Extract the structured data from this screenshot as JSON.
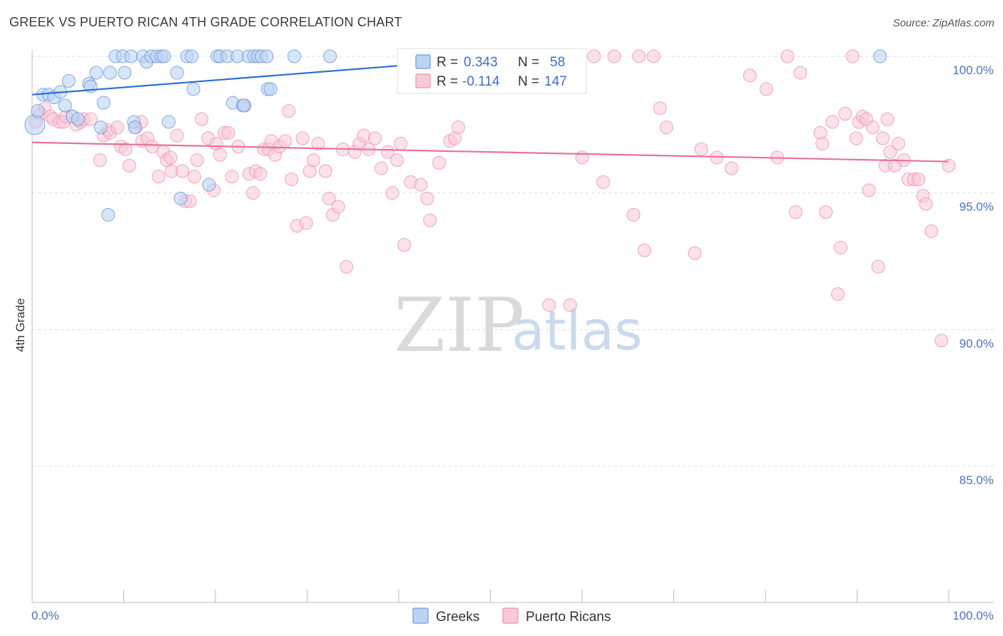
{
  "title": "GREEK VS PUERTO RICAN 4TH GRADE CORRELATION CHART",
  "source": "Source: ZipAtlas.com",
  "watermark": {
    "zip": "ZIP",
    "atlas": "atlas"
  },
  "colors": {
    "greeks": "#6a9be0",
    "greeks_fill": "#bcd3f3",
    "puerto_ricans": "#ef8fab",
    "puerto_ricans_fill": "#f8c9d7",
    "greeks_line": "#2a6fd1",
    "puerto_ricans_line": "#e8729a",
    "tick_label": "#4a72c4",
    "grid": "#dcdcdc"
  },
  "legend": {
    "greeks": {
      "r_label": "R =",
      "r_value": "0.343",
      "n_label": "N =",
      "n_value": "58"
    },
    "puerto_ricans": {
      "r_label": "R =",
      "r_value": "-0.114",
      "n_label": "N =",
      "n_value": "147"
    }
  },
  "bottom_legend": {
    "greeks": "Greeks",
    "puerto_ricans": "Puerto Ricans"
  },
  "chart_data": {
    "type": "scatter",
    "title": "GREEK VS PUERTO RICAN 4TH GRADE CORRELATION CHART",
    "xlabel": "",
    "ylabel": "4th Grade",
    "xlim": [
      0,
      100
    ],
    "ylim": [
      80.5,
      100.8
    ],
    "x_tick_labels": [
      "0.0%",
      "100.0%"
    ],
    "y_ticks": [
      85,
      90,
      95,
      100
    ],
    "y_tick_labels": [
      "85.0%",
      "90.0%",
      "95.0%",
      "100.0%"
    ],
    "grid": true,
    "legend_position": "top-center",
    "series": [
      {
        "name": "Greeks",
        "r": 0.343,
        "n": 58,
        "trend": {
          "x": [
            0,
            53
          ],
          "y": [
            98.6,
            100.0
          ]
        },
        "points": [
          [
            0.3,
            97.5
          ],
          [
            0.6,
            98.0
          ],
          [
            1.2,
            98.6
          ],
          [
            1.8,
            98.6
          ],
          [
            2.4,
            98.5
          ],
          [
            3.1,
            98.7
          ],
          [
            3.6,
            98.2
          ],
          [
            4.0,
            99.1
          ],
          [
            4.4,
            97.8
          ],
          [
            5.0,
            97.7
          ],
          [
            6.2,
            99.0
          ],
          [
            6.4,
            98.9
          ],
          [
            7.0,
            99.4
          ],
          [
            7.5,
            97.4
          ],
          [
            7.8,
            98.3
          ],
          [
            8.3,
            94.2
          ],
          [
            8.5,
            99.4
          ],
          [
            9.1,
            100.0
          ],
          [
            9.9,
            100.0
          ],
          [
            10.1,
            99.4
          ],
          [
            10.8,
            100.0
          ],
          [
            11.1,
            97.6
          ],
          [
            11.2,
            97.4
          ],
          [
            12.1,
            100.0
          ],
          [
            12.5,
            99.8
          ],
          [
            13.0,
            100.0
          ],
          [
            13.6,
            100.0
          ],
          [
            14.1,
            100.0
          ],
          [
            14.4,
            100.0
          ],
          [
            14.9,
            97.6
          ],
          [
            15.8,
            99.4
          ],
          [
            16.2,
            94.8
          ],
          [
            16.9,
            100.0
          ],
          [
            17.4,
            100.0
          ],
          [
            17.6,
            98.8
          ],
          [
            19.3,
            95.3
          ],
          [
            20.2,
            100.0
          ],
          [
            20.5,
            100.0
          ],
          [
            21.3,
            100.0
          ],
          [
            21.9,
            98.3
          ],
          [
            22.4,
            100.0
          ],
          [
            23.0,
            98.2
          ],
          [
            23.1,
            98.2
          ],
          [
            23.6,
            100.0
          ],
          [
            24.2,
            100.0
          ],
          [
            24.6,
            100.0
          ],
          [
            25.0,
            100.0
          ],
          [
            25.6,
            100.0
          ],
          [
            25.7,
            98.8
          ],
          [
            26.0,
            98.8
          ],
          [
            28.6,
            100.0
          ],
          [
            32.5,
            100.0
          ],
          [
            40.7,
            100.0
          ],
          [
            42.1,
            100.0
          ],
          [
            44.4,
            100.0
          ],
          [
            46.0,
            100.0
          ],
          [
            56.8,
            100.0
          ],
          [
            92.5,
            100.0
          ]
        ]
      },
      {
        "name": "Puerto Ricans",
        "r": -0.114,
        "n": 147,
        "trend": {
          "x": [
            0,
            100
          ],
          "y": [
            96.85,
            96.15
          ]
        },
        "points": [
          [
            0.4,
            97.6
          ],
          [
            0.9,
            97.9
          ],
          [
            1.4,
            98.1
          ],
          [
            2.0,
            97.8
          ],
          [
            2.3,
            97.7
          ],
          [
            3.0,
            97.6
          ],
          [
            3.4,
            97.6
          ],
          [
            3.7,
            97.8
          ],
          [
            4.4,
            97.8
          ],
          [
            4.8,
            97.5
          ],
          [
            5.3,
            97.6
          ],
          [
            5.6,
            97.7
          ],
          [
            6.4,
            97.7
          ],
          [
            7.4,
            96.2
          ],
          [
            7.8,
            97.1
          ],
          [
            8.3,
            97.3
          ],
          [
            8.5,
            97.2
          ],
          [
            9.3,
            97.4
          ],
          [
            9.7,
            96.7
          ],
          [
            10.2,
            96.6
          ],
          [
            10.6,
            96.0
          ],
          [
            11.3,
            97.4
          ],
          [
            11.9,
            97.6
          ],
          [
            12.0,
            96.9
          ],
          [
            12.6,
            97.0
          ],
          [
            13.1,
            96.7
          ],
          [
            13.8,
            95.6
          ],
          [
            14.3,
            96.5
          ],
          [
            14.7,
            96.2
          ],
          [
            15.1,
            96.3
          ],
          [
            15.2,
            95.8
          ],
          [
            15.8,
            97.1
          ],
          [
            16.4,
            95.8
          ],
          [
            16.7,
            94.7
          ],
          [
            17.2,
            94.7
          ],
          [
            17.7,
            95.6
          ],
          [
            18.0,
            96.2
          ],
          [
            18.5,
            97.7
          ],
          [
            19.2,
            97.0
          ],
          [
            19.8,
            95.1
          ],
          [
            20.1,
            96.8
          ],
          [
            20.5,
            96.4
          ],
          [
            21.0,
            97.2
          ],
          [
            21.4,
            97.2
          ],
          [
            21.8,
            95.6
          ],
          [
            22.5,
            96.7
          ],
          [
            23.2,
            98.2
          ],
          [
            23.7,
            95.7
          ],
          [
            24.1,
            95.0
          ],
          [
            24.4,
            95.8
          ],
          [
            24.9,
            95.7
          ],
          [
            25.3,
            96.6
          ],
          [
            25.8,
            96.6
          ],
          [
            26.1,
            96.9
          ],
          [
            26.5,
            96.4
          ],
          [
            27.0,
            96.7
          ],
          [
            27.6,
            96.9
          ],
          [
            28.0,
            98.0
          ],
          [
            28.3,
            95.5
          ],
          [
            28.9,
            93.8
          ],
          [
            29.5,
            97.0
          ],
          [
            29.9,
            93.9
          ],
          [
            30.3,
            95.8
          ],
          [
            30.7,
            96.2
          ],
          [
            31.2,
            96.8
          ],
          [
            32.0,
            95.8
          ],
          [
            32.4,
            94.8
          ],
          [
            32.8,
            94.2
          ],
          [
            33.4,
            94.5
          ],
          [
            33.9,
            96.6
          ],
          [
            34.3,
            92.3
          ],
          [
            35.2,
            96.5
          ],
          [
            35.7,
            96.8
          ],
          [
            36.2,
            97.1
          ],
          [
            36.7,
            96.6
          ],
          [
            37.4,
            97.0
          ],
          [
            38.1,
            95.9
          ],
          [
            38.8,
            96.5
          ],
          [
            39.3,
            95.0
          ],
          [
            39.8,
            96.2
          ],
          [
            40.2,
            96.8
          ],
          [
            40.6,
            93.1
          ],
          [
            41.3,
            95.4
          ],
          [
            42.4,
            95.3
          ],
          [
            43.1,
            94.8
          ],
          [
            43.4,
            94.0
          ],
          [
            44.4,
            96.1
          ],
          [
            45.6,
            96.9
          ],
          [
            46.1,
            97.0
          ],
          [
            46.5,
            97.4
          ],
          [
            47.4,
            100.0
          ],
          [
            48.6,
            99.4
          ],
          [
            49.7,
            100.0
          ],
          [
            50.6,
            100.0
          ],
          [
            56.4,
            90.9
          ],
          [
            58.7,
            90.9
          ],
          [
            59.0,
            100.0
          ],
          [
            60.0,
            96.3
          ],
          [
            61.3,
            100.0
          ],
          [
            62.3,
            95.4
          ],
          [
            63.5,
            100.0
          ],
          [
            65.6,
            94.2
          ],
          [
            66.2,
            100.0
          ],
          [
            66.8,
            92.9
          ],
          [
            67.8,
            100.0
          ],
          [
            68.5,
            98.1
          ],
          [
            69.2,
            97.4
          ],
          [
            72.3,
            92.8
          ],
          [
            73.0,
            96.6
          ],
          [
            74.7,
            96.3
          ],
          [
            76.3,
            95.9
          ],
          [
            78.3,
            99.3
          ],
          [
            80.1,
            98.8
          ],
          [
            81.3,
            96.3
          ],
          [
            82.4,
            100.0
          ],
          [
            83.3,
            94.3
          ],
          [
            83.8,
            99.4
          ],
          [
            86.0,
            97.2
          ],
          [
            86.2,
            96.8
          ],
          [
            86.6,
            94.3
          ],
          [
            87.3,
            97.6
          ],
          [
            87.9,
            91.3
          ],
          [
            88.2,
            93.0
          ],
          [
            88.7,
            97.9
          ],
          [
            89.5,
            100.0
          ],
          [
            89.9,
            97.0
          ],
          [
            90.2,
            97.6
          ],
          [
            90.6,
            97.8
          ],
          [
            91.0,
            97.7
          ],
          [
            91.3,
            95.1
          ],
          [
            91.7,
            97.4
          ],
          [
            92.3,
            92.3
          ],
          [
            92.8,
            97.0
          ],
          [
            93.1,
            96.0
          ],
          [
            93.3,
            97.7
          ],
          [
            93.6,
            96.5
          ],
          [
            94.1,
            96.0
          ],
          [
            94.5,
            96.8
          ],
          [
            95.1,
            96.2
          ],
          [
            95.6,
            95.5
          ],
          [
            96.2,
            95.5
          ],
          [
            96.7,
            95.5
          ],
          [
            97.2,
            94.9
          ],
          [
            97.5,
            94.6
          ],
          [
            98.1,
            93.6
          ],
          [
            99.2,
            89.6
          ],
          [
            100.0,
            96.0
          ]
        ]
      }
    ]
  }
}
